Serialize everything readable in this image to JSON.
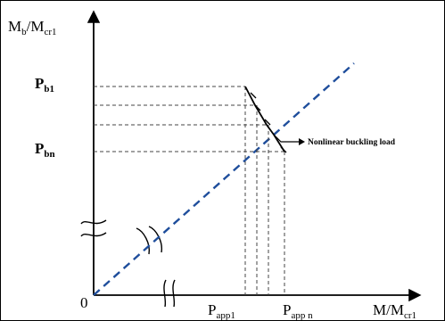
{
  "diagram": {
    "y_axis_label": {
      "main": "M",
      "sub1": "b",
      "mid": "/M",
      "sub2": "cr1"
    },
    "x_axis_label": {
      "main": "M/M",
      "sub": "cr1"
    },
    "origin_label": "0",
    "p_b1": {
      "main": "P",
      "sub": "b1"
    },
    "p_bn": {
      "main": "P",
      "sub": "bn"
    },
    "p_app1": {
      "main": "P",
      "sub": "app1"
    },
    "p_appn": {
      "main": "P",
      "sub": "app n"
    },
    "annotation": "Nonlinear buckling load",
    "colors": {
      "diagonal_line": "#1f4e9c",
      "axes": "#000000",
      "guides": "#444444"
    }
  }
}
